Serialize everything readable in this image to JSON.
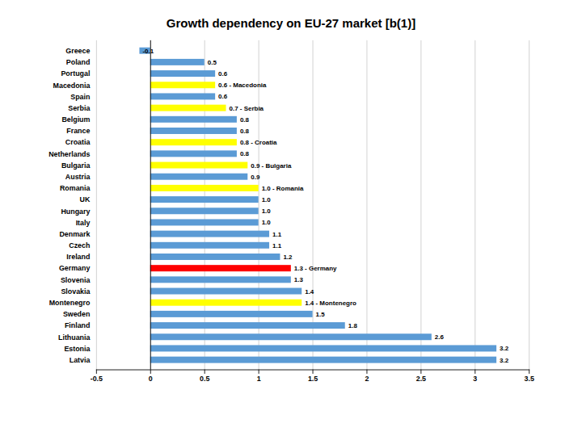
{
  "chart_data": {
    "type": "bar",
    "orientation": "horizontal",
    "title": "Growth dependency on EU-27 market [b(1)]",
    "categories": [
      "Greece",
      "Poland",
      "Portugal",
      "Macedonia",
      "Spain",
      "Serbia",
      "Belgium",
      "France",
      "Croatia",
      "Netherlands",
      "Bulgaria",
      "Austria",
      "Romania",
      "UK",
      "Hungary",
      "Italy",
      "Denmark",
      "Czech",
      "Ireland",
      "Germany",
      "Slovenia",
      "Slovakia",
      "Montenegro",
      "Sweden",
      "Finland",
      "Lithuania",
      "Estonia",
      "Latvia"
    ],
    "values": [
      -0.1,
      0.5,
      0.6,
      0.6,
      0.6,
      0.7,
      0.8,
      0.8,
      0.8,
      0.8,
      0.9,
      0.9,
      1.0,
      1.0,
      1.0,
      1.0,
      1.1,
      1.1,
      1.2,
      1.3,
      1.3,
      1.4,
      1.4,
      1.5,
      1.8,
      2.6,
      3.2,
      3.2
    ],
    "value_labels": [
      "-0.1",
      "0.5",
      "0.6",
      "0.6 - Macedonia",
      "0.6",
      "0.7 - Serbia",
      "0.8",
      "0.8",
      "0.8 - Croatia",
      "0.8",
      "0.9 - Bulgaria",
      "0.9",
      "1.0 - Romania",
      "1.0",
      "1.0",
      "1.0",
      "1.1",
      "1.1",
      "1.2",
      "1.3 - Germany",
      "1.3",
      "1.4",
      "1.4 - Montenegro",
      "1.5",
      "1.8",
      "2.6",
      "3.2",
      "3.2"
    ],
    "data_labels": true,
    "colors": [
      "#5b9bd5",
      "#5b9bd5",
      "#5b9bd5",
      "#ffff00",
      "#5b9bd5",
      "#ffff00",
      "#5b9bd5",
      "#5b9bd5",
      "#ffff00",
      "#5b9bd5",
      "#ffff00",
      "#5b9bd5",
      "#ffff00",
      "#5b9bd5",
      "#5b9bd5",
      "#5b9bd5",
      "#5b9bd5",
      "#5b9bd5",
      "#5b9bd5",
      "#ff0000",
      "#5b9bd5",
      "#5b9bd5",
      "#ffff00",
      "#5b9bd5",
      "#5b9bd5",
      "#5b9bd5",
      "#5b9bd5",
      "#5b9bd5"
    ],
    "xlim": [
      -0.5,
      3.5
    ],
    "xticks": [
      -0.5,
      0,
      0.5,
      1.0,
      1.5,
      2.0,
      2.5,
      3.0,
      3.5
    ],
    "grid": true
  }
}
